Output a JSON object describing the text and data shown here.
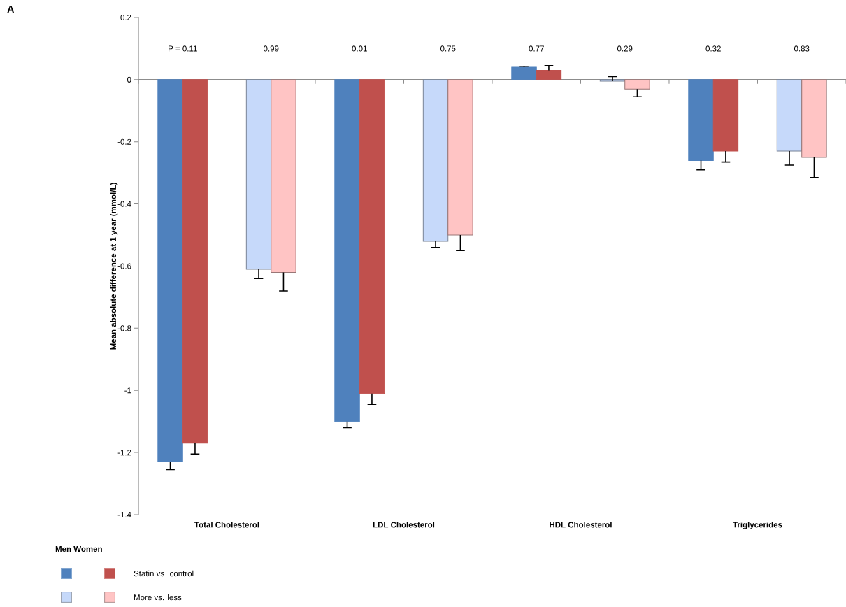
{
  "chart_data": {
    "type": "bar",
    "title": "A",
    "ylabel": "Mean absolute difference at 1 year (mmol/L)",
    "categories": [
      "Total Cholesterol",
      "LDL Cholesterol",
      "HDL Cholesterol",
      "Triglycerides"
    ],
    "series": [
      {
        "color": "#4f81bd",
        "values": [
          -1.23,
          -1.1,
          0.04,
          -0.26
        ],
        "errors": [
          [
            -1.255,
            -1.23
          ],
          [
            -1.12,
            -1.1
          ],
          [
            0.04,
            0.043
          ],
          [
            -0.29,
            -0.26
          ]
        ]
      },
      {
        "name": "Statin vs. control",
        "color": "#c0504d",
        "values": [
          -1.17,
          -1.01,
          0.03,
          -0.23
        ],
        "errors": [
          [
            -1.205,
            -1.17
          ],
          [
            -1.045,
            -1.01
          ],
          [
            0.03,
            0.045
          ],
          [
            -0.265,
            -0.23
          ]
        ]
      },
      {
        "color": "#c6d9fa",
        "values": [
          -0.61,
          -0.52,
          -0.005,
          -0.23
        ],
        "errors": [
          [
            -0.64,
            -0.61
          ],
          [
            -0.54,
            -0.52
          ],
          [
            -0.005,
            0.01
          ],
          [
            -0.275,
            -0.23
          ]
        ]
      },
      {
        "name": "More vs. less",
        "color": "#ffc4c4",
        "values": [
          -0.62,
          -0.5,
          -0.03,
          -0.25
        ],
        "errors": [
          [
            -0.68,
            -0.62
          ],
          [
            -0.55,
            -0.5
          ],
          [
            -0.055,
            -0.03
          ],
          [
            -0.315,
            -0.25
          ]
        ]
      }
    ],
    "annotations": [
      "P =  0.11",
      "0.99",
      "0.01",
      "0.75",
      "0.77",
      "0.29",
      "0.32",
      "0.83"
    ],
    "ylim": [
      -1.4,
      0.2
    ],
    "yticks": [
      -1.4,
      -1.2,
      -1,
      -0.8,
      -0.6,
      -0.4,
      -0.2,
      0,
      0.2
    ],
    "ref_lines": [
      {
        "axis": "y",
        "value": 0,
        "color": "#8c8c8c"
      }
    ],
    "legend": "bottom left",
    "legend_title": "Men Women",
    "grid": false
  }
}
